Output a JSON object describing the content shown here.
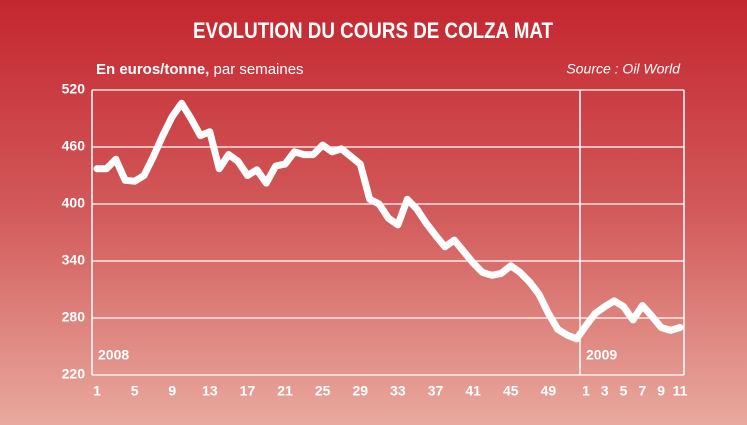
{
  "chart_data": {
    "type": "line",
    "title": "EVOLUTION DU COURS DE COLZA MAT",
    "y_label": "En euros/tonne,",
    "subtitle": "par semaines",
    "source": "Source : Oil World",
    "annotations": [
      "2008",
      "2009"
    ],
    "categories": [
      "1",
      null,
      null,
      null,
      "5",
      null,
      null,
      null,
      "9",
      null,
      null,
      null,
      "13",
      null,
      null,
      null,
      "17",
      null,
      null,
      null,
      "21",
      null,
      null,
      null,
      "25",
      null,
      null,
      null,
      "29",
      null,
      null,
      null,
      "33",
      null,
      null,
      null,
      "37",
      null,
      null,
      null,
      "41",
      null,
      null,
      null,
      "45",
      null,
      null,
      null,
      "49",
      null,
      null,
      null,
      "1",
      null,
      "3",
      null,
      "5",
      null,
      "7",
      null,
      "9",
      null,
      "11"
    ],
    "series": [
      {
        "name": "Colza mat",
        "color": "#ffffff",
        "values": [
          437,
          437,
          447,
          425,
          424,
          430,
          450,
          472,
          492,
          506,
          490,
          472,
          476,
          437,
          452,
          445,
          430,
          436,
          422,
          440,
          442,
          455,
          452,
          452,
          462,
          455,
          458,
          450,
          442,
          405,
          400,
          385,
          378,
          405,
          395,
          380,
          367,
          355,
          362,
          350,
          338,
          328,
          325,
          327,
          335,
          328,
          318,
          305,
          285,
          268,
          262,
          258,
          272,
          285,
          292,
          298,
          292,
          278,
          293,
          282,
          270,
          267,
          270
        ]
      }
    ],
    "ylim": [
      220,
      520
    ],
    "yticks": [
      220,
      280,
      340,
      400,
      460,
      520
    ],
    "grid": true
  }
}
